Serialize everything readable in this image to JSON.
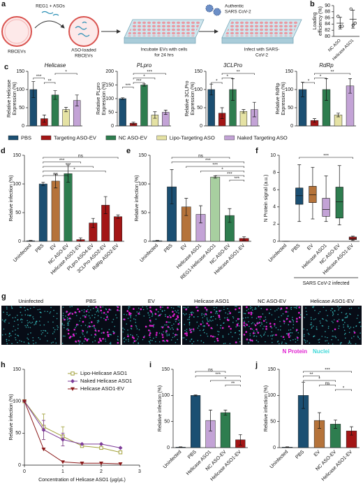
{
  "schematic": {
    "panel": "a",
    "reagent": "REG1 + ASOs",
    "vesicle": "RBCEVs",
    "loaded": [
      "ASO-loaded",
      "RBCEVs"
    ],
    "incubate": [
      "Incubate EVs with cells",
      "for 24 hrs"
    ],
    "virus": [
      "Authentic",
      "SARS CoV-2"
    ],
    "infect": [
      "Infect with SARS-",
      "CoV-2"
    ]
  },
  "chart_data": [
    {
      "type": "dot",
      "panel": "b",
      "ylabel": [
        "Loading",
        "efficiency (%)"
      ],
      "categories": [
        "NC ASO",
        "Helicase ASO1"
      ],
      "values": [
        84.3,
        85.6
      ],
      "errors": [
        1.9,
        2.9
      ],
      "points": [
        [
          86.5,
          83.2,
          83.3
        ],
        [
          88.9,
          83.6,
          84.3
        ]
      ],
      "ylim": [
        80,
        90
      ],
      "yticks": [
        80,
        82,
        84,
        86,
        88,
        90
      ]
    },
    {
      "type": "bar",
      "panel": "c",
      "title": "Helicase",
      "ylabel": [
        "Relative Helicase",
        "Expression (%)"
      ],
      "values": [
        100,
        20,
        85,
        45,
        70
      ],
      "errors": [
        22,
        10,
        12,
        6,
        15
      ],
      "colors": [
        "#1b4f72",
        "#a31515",
        "#2e7d4f",
        "#e5e2a4",
        "#c3a3d6"
      ],
      "ylim": [
        0,
        150
      ],
      "yticks": [
        0,
        50,
        100,
        150
      ],
      "brackets": [
        {
          "label": "*",
          "between": [
            2,
            4
          ]
        },
        {
          "label": "***",
          "between": [
            0,
            1
          ]
        },
        {
          "label": "**",
          "between": [
            1,
            2
          ]
        }
      ]
    },
    {
      "type": "bar",
      "title": "PLpro",
      "ylabel": [
        "Relative PLpro",
        "Expression (%)"
      ],
      "values": [
        100,
        10,
        150,
        40,
        50
      ],
      "errors": [
        3,
        4,
        4,
        12,
        8
      ],
      "colors": [
        "#1b4f72",
        "#a31515",
        "#2e7d4f",
        "#e5e2a4",
        "#c3a3d6"
      ],
      "ylim": [
        0,
        200
      ],
      "yticks": [
        0,
        50,
        100,
        150,
        200
      ],
      "brackets": [
        {
          "label": "***",
          "between": [
            1,
            4
          ]
        },
        {
          "label": "*",
          "between": [
            1,
            3
          ]
        },
        {
          "label": "***",
          "between": [
            1,
            2
          ]
        },
        {
          "label": "***",
          "between": [
            0,
            1
          ]
        }
      ]
    },
    {
      "type": "bar",
      "title": "3CLPro",
      "ylabel": [
        "Relative 3CLPro",
        "Expression (%)"
      ],
      "values": [
        100,
        35,
        100,
        40,
        45
      ],
      "errors": [
        15,
        15,
        30,
        5,
        20
      ],
      "colors": [
        "#1b4f72",
        "#a31515",
        "#2e7d4f",
        "#e5e2a4",
        "#c3a3d6"
      ],
      "ylim": [
        0,
        150
      ],
      "yticks": [
        0,
        50,
        100,
        150
      ],
      "brackets": [
        {
          "label": "**",
          "between": [
            1,
            4
          ]
        },
        {
          "label": "*",
          "between": [
            1,
            2
          ]
        },
        {
          "label": "*",
          "between": [
            0,
            1
          ]
        }
      ]
    },
    {
      "type": "bar",
      "title": "RdRp",
      "ylabel": [
        "Relative RdRp",
        "Expression (%)"
      ],
      "values": [
        100,
        15,
        100,
        30,
        110
      ],
      "errors": [
        20,
        5,
        30,
        5,
        20
      ],
      "colors": [
        "#1b4f72",
        "#a31515",
        "#2e7d4f",
        "#e5e2a4",
        "#c3a3d6"
      ],
      "ylim": [
        0,
        150
      ],
      "yticks": [
        0,
        50,
        100,
        150
      ],
      "brackets": [
        {
          "label": "**",
          "between": [
            1,
            4
          ]
        },
        {
          "label": "*",
          "between": [
            1,
            2
          ]
        },
        {
          "label": "*",
          "between": [
            0,
            1
          ]
        }
      ]
    },
    {
      "type": "bar",
      "panel": "d",
      "ylabel": "Relative infection (%)",
      "categories": [
        "Uninfected",
        "PBS",
        "EV",
        "NC ASO-EV",
        "Helicase ASO1-EV",
        "PLpro ASO4-EV",
        "3CLPro ASO2-EV",
        "RdRp ASO2-EV"
      ],
      "values": [
        1,
        100,
        105,
        118,
        3,
        32,
        63,
        43
      ],
      "errors": [
        0.5,
        3,
        12,
        15,
        3,
        8,
        15,
        3
      ],
      "colors": [
        "#1b4f72",
        "#1b4f72",
        "#b5733a",
        "#2e7d4f",
        "#a31515",
        "#a31515",
        "#a31515",
        "#a31515"
      ],
      "ylim": [
        0,
        150
      ],
      "yticks": [
        0,
        50,
        100,
        150
      ],
      "brackets": [
        {
          "label": "ns",
          "between": [
            1,
            7
          ]
        },
        {
          "label": "***",
          "between": [
            1,
            4
          ]
        },
        {
          "label": "***",
          "between": [
            1,
            5
          ]
        },
        {
          "label": "*",
          "between": [
            1,
            6
          ]
        },
        {
          "label": "ns",
          "between": [
            1,
            3
          ]
        }
      ]
    },
    {
      "type": "bar",
      "panel": "e",
      "ylabel": "Relative infection (%)",
      "categories": [
        "Uninfected",
        "PBS",
        "EV",
        "Helicase ASO1",
        "REG1-Helicase ASO1",
        "NC ASO-EV",
        "Helicase ASO1-EV"
      ],
      "values": [
        1,
        95,
        60,
        47,
        112,
        45,
        5
      ],
      "errors": [
        0.5,
        30,
        15,
        15,
        2,
        12,
        3
      ],
      "colors": [
        "#1b4f72",
        "#1b4f72",
        "#b5733a",
        "#c3a3d6",
        "#a8cfa0",
        "#2e7d4f",
        "#a31515"
      ],
      "ylim": [
        0,
        150
      ],
      "yticks": [
        0,
        50,
        100,
        150
      ],
      "brackets": [
        {
          "label": "ns",
          "between": [
            1,
            5
          ]
        },
        {
          "label": "***",
          "between": [
            1,
            6
          ]
        },
        {
          "label": "***",
          "between": [
            2,
            6
          ]
        },
        {
          "label": "*",
          "between": [
            3,
            6
          ]
        },
        {
          "label": "***",
          "between": [
            4,
            6
          ]
        },
        {
          "label": "***",
          "between": [
            5,
            6
          ]
        }
      ]
    },
    {
      "type": "box",
      "panel": "f",
      "ylabel": "N Protein signal (a.u.)",
      "categories": [
        "Uninfected",
        "PBS",
        "EV",
        "Helicase ASO1",
        "NC ASO-EV",
        "Helicase ASO1-EV"
      ],
      "boxes": [
        [
          0,
          0,
          0,
          0,
          0
        ],
        [
          2.3,
          4.3,
          5.3,
          6.2,
          8.9
        ],
        [
          2.6,
          4.5,
          5.4,
          6.4,
          8.6
        ],
        [
          2.3,
          2.9,
          3.7,
          5.0,
          7.6
        ],
        [
          1.9,
          2.7,
          4.6,
          6.3,
          8.8
        ],
        [
          0.1,
          0.2,
          0.3,
          0.5,
          0.6
        ]
      ],
      "colors": [
        "#1b4f72",
        "#1b4f72",
        "#b5733a",
        "#c3a3d6",
        "#2e7d4f",
        "#a31515"
      ],
      "group_label": "SARS CoV-2 infected",
      "ylim": [
        0,
        10
      ],
      "yticks": [
        0,
        2,
        4,
        6,
        8,
        10
      ],
      "brackets": [
        {
          "label": "***",
          "between": [
            1,
            5
          ]
        }
      ]
    },
    {
      "type": "line",
      "panel": "h",
      "xlabel": "Concentration of Helicase ASO1 (µg/µL)",
      "ylabel": "Relative infection (%)",
      "x": [
        0,
        0.5,
        1,
        1.5,
        2,
        2.5
      ],
      "xlim": [
        0,
        3
      ],
      "xticks": [
        0,
        1,
        2,
        3
      ],
      "ylim": [
        0,
        150
      ],
      "yticks": [
        0,
        50,
        100,
        150
      ],
      "series": [
        {
          "name": "Lipo-Helicase ASO1",
          "color": "#a3a23c",
          "marker": "square-open",
          "values": [
            100,
            60,
            45,
            30,
            27,
            20
          ],
          "errors": [
            null,
            20,
            15,
            null,
            null,
            null
          ]
        },
        {
          "name": "Naked Helicase ASO1",
          "color": "#7d3c98",
          "marker": "diamond",
          "values": [
            100,
            55,
            40,
            33,
            33,
            27
          ],
          "errors": [
            null,
            15,
            10,
            null,
            null,
            null
          ]
        },
        {
          "name": "Helicase ASO1-EV",
          "color": "#8b1a1a",
          "marker": "triangle-down",
          "values": [
            100,
            25,
            5,
            3,
            3,
            2
          ]
        }
      ]
    },
    {
      "type": "bar",
      "panel": "i",
      "ylabel": "Relative infection (%)",
      "categories": [
        "Uninfected",
        "PBS",
        "Helicase ASO1",
        "NC ASO-EV",
        "Helicase ASO1-EV"
      ],
      "values": [
        1,
        100,
        52,
        67,
        15
      ],
      "errors": [
        0.5,
        1,
        20,
        5,
        10
      ],
      "colors": [
        "#1b4f72",
        "#1b4f72",
        "#c3a3d6",
        "#2e7d4f",
        "#a31515"
      ],
      "ylim": [
        0,
        150
      ],
      "yticks": [
        0,
        50,
        100,
        150
      ],
      "brackets": [
        {
          "label": "ns",
          "between": [
            1,
            3
          ]
        },
        {
          "label": "***",
          "between": [
            1,
            4
          ]
        },
        {
          "label": "*",
          "between": [
            2,
            4
          ]
        },
        {
          "label": "**",
          "between": [
            3,
            4
          ]
        }
      ]
    },
    {
      "type": "bar",
      "panel": "j",
      "ylabel": "Relative infection (%)",
      "categories": [
        "Uninfected",
        "PBS",
        "EV",
        "NC ASO-EV",
        "Helicase ASO1-EV"
      ],
      "values": [
        1,
        100,
        52,
        45,
        32
      ],
      "errors": [
        0.5,
        25,
        15,
        8,
        8
      ],
      "colors": [
        "#1b4f72",
        "#1b4f72",
        "#b5733a",
        "#2e7d4f",
        "#a31515"
      ],
      "ylim": [
        0,
        150
      ],
      "yticks": [
        0,
        50,
        100,
        150
      ],
      "brackets": [
        {
          "label": "***",
          "between": [
            1,
            4
          ]
        },
        {
          "label": "**",
          "between": [
            1,
            2
          ]
        },
        {
          "label": "*",
          "between": [
            1,
            3
          ]
        },
        {
          "label": "ns",
          "between": [
            2,
            3
          ]
        },
        {
          "label": "*",
          "between": [
            3,
            4
          ]
        }
      ]
    }
  ],
  "legend_c": {
    "items": [
      {
        "name": "PBS",
        "color": "#1b4f72"
      },
      {
        "name": "Targeting ASO-EV",
        "color": "#a31515"
      },
      {
        "name": "NC ASO-EV",
        "color": "#2e7d4f"
      },
      {
        "name": "Lipo-Targeting ASO",
        "color": "#e5e2a4"
      },
      {
        "name": "Naked Targeting ASO",
        "color": "#c3a3d6"
      }
    ]
  },
  "images": {
    "panel": "g",
    "labels": [
      "Uninfected",
      "PBS",
      "EV",
      "Helicase ASO1",
      "NC ASO-EV",
      "Helicase ASO1-EV"
    ],
    "legend": [
      {
        "name": "N Protein",
        "color": "#e020d0"
      },
      {
        "name": "Nuclei",
        "color": "#3fd8d8"
      }
    ]
  }
}
